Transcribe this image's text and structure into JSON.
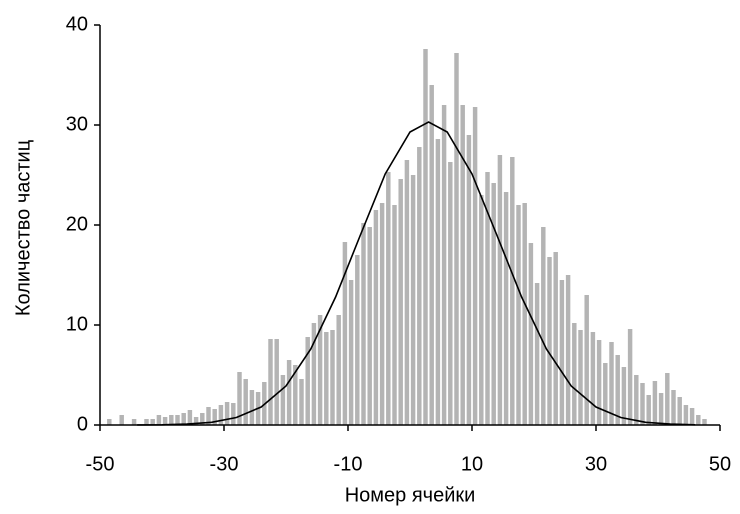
{
  "chart_data": {
    "type": "histogram",
    "xlabel": "Номер ячейки",
    "ylabel": "Количество частиц",
    "bins": [
      -50,
      -49,
      -48,
      -47,
      -46,
      -45,
      -44,
      -43,
      -42,
      -41,
      -40,
      -39,
      -38,
      -37,
      -36,
      -35,
      -34,
      -33,
      -32,
      -31,
      -30,
      -29,
      -28,
      -27,
      -26,
      -25,
      -24,
      -23,
      -22,
      -21,
      -20,
      -19,
      -18,
      -17,
      -16,
      -15,
      -14,
      -13,
      -12,
      -11,
      -10,
      -9,
      -8,
      -7,
      -6,
      -5,
      -4,
      -3,
      -2,
      -1,
      0,
      1,
      2,
      3,
      4,
      5,
      6,
      7,
      8,
      9,
      10,
      11,
      12,
      13,
      14,
      15,
      16,
      17,
      18,
      19,
      20,
      21,
      22,
      23,
      24,
      25,
      26,
      27,
      28,
      29,
      30,
      31,
      32,
      33,
      34,
      35,
      36,
      37,
      38,
      39,
      40,
      41,
      42,
      43,
      44,
      45,
      46,
      47,
      48,
      49,
      50
    ],
    "values": [
      0,
      0.6,
      0,
      1,
      0,
      0.6,
      0,
      0.6,
      0.6,
      1,
      0.8,
      1,
      1,
      1.2,
      1.5,
      0.8,
      1.2,
      1.8,
      1.6,
      2,
      2.3,
      2.2,
      5.3,
      4.6,
      3.5,
      3.3,
      4.3,
      8.6,
      8.6,
      5,
      6.5,
      6,
      4.6,
      8.8,
      10.2,
      11,
      9.3,
      9.5,
      11,
      18.3,
      14.5,
      17,
      20.2,
      19.8,
      21.5,
      22.2,
      25.3,
      22,
      24.6,
      26.5,
      25,
      27.8,
      37.6,
      34,
      28.6,
      32,
      26.3,
      37.2,
      32,
      29,
      31.8,
      23,
      25.3,
      24.2,
      27,
      23.3,
      26.8,
      22,
      22.2,
      18.2,
      14.2,
      19.8,
      16.8,
      17.3,
      14.5,
      15,
      10.2,
      9.5,
      13,
      9.3,
      8.5,
      6.2,
      8.3,
      7,
      5.8,
      9.6,
      5,
      4.2,
      3,
      4.4,
      3.2,
      5.2,
      3.5,
      2.8,
      2,
      1.7,
      1,
      0.6,
      0,
      0
    ],
    "color": "#b4b4b4",
    "curve": {
      "color": "#000000",
      "x": [
        -44,
        -40,
        -36,
        -32,
        -28,
        -24,
        -20,
        -16,
        -12,
        -8,
        -4,
        0,
        3,
        6,
        10,
        14,
        18,
        22,
        26,
        30,
        34,
        38,
        42,
        46
      ],
      "y": [
        0.01,
        0.02,
        0.09,
        0.27,
        0.75,
        1.8,
        3.9,
        7.6,
        12.8,
        19.0,
        25.1,
        29.3,
        30.3,
        29.3,
        25.1,
        19.0,
        12.8,
        7.6,
        3.9,
        1.8,
        0.75,
        0.27,
        0.09,
        0.02
      ]
    },
    "xlim": [
      -50,
      50
    ],
    "xticks": [
      -50,
      -30,
      -10,
      10,
      30,
      50
    ],
    "ylim": [
      0,
      40
    ],
    "yticks": [
      0,
      10,
      20,
      30,
      40
    ],
    "grid": false
  }
}
